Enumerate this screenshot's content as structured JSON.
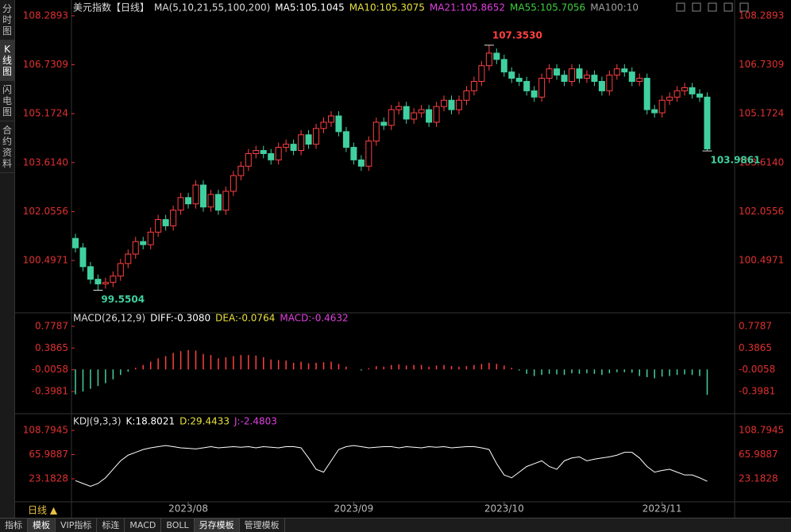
{
  "ui": {
    "sidebar": [
      "分时图",
      "K线图",
      "闪电图",
      "合约资料"
    ],
    "period": "日线 ▲",
    "tabs": [
      "指标",
      "模板",
      "VIP指标",
      "标连",
      "MACD",
      "BOLL",
      "另存模板",
      "管理模板"
    ]
  },
  "chart_data": [
    {
      "type": "candlestick",
      "title": "美元指数【日线】",
      "legend": [
        {
          "label": "MA(5,10,21,55,100,200)",
          "color": "#dddddd"
        },
        {
          "label": "MA5:105.1045",
          "color": "#ffffff"
        },
        {
          "label": "MA10:105.3075",
          "color": "#e8e040"
        },
        {
          "label": "MA21:105.8652",
          "color": "#e040e0"
        },
        {
          "label": "MA55:105.7056",
          "color": "#40d040"
        },
        {
          "label": "MA100:10",
          "color": "#a0a0a0"
        }
      ],
      "categories": [
        null,
        null,
        null,
        null,
        null,
        null,
        null,
        null,
        null,
        null,
        null,
        null,
        null,
        null,
        null,
        "2023/08",
        null,
        null,
        null,
        null,
        null,
        null,
        null,
        null,
        null,
        null,
        null,
        null,
        null,
        null,
        null,
        null,
        null,
        null,
        null,
        null,
        null,
        "2023/09",
        null,
        null,
        null,
        null,
        null,
        null,
        null,
        null,
        null,
        null,
        null,
        null,
        null,
        null,
        null,
        null,
        null,
        null,
        null,
        "2023/10",
        null,
        null,
        null,
        null,
        null,
        null,
        null,
        null,
        null,
        null,
        null,
        null,
        null,
        null,
        null,
        null,
        null,
        null,
        null,
        null,
        "2023/11",
        null,
        null,
        null,
        null,
        null,
        null
      ],
      "ohlc": [
        [
          101.2,
          101.35,
          100.75,
          100.9
        ],
        [
          100.9,
          101.05,
          100.15,
          100.3
        ],
        [
          100.3,
          100.45,
          99.75,
          99.9
        ],
        [
          99.9,
          100.05,
          99.5504,
          99.75
        ],
        [
          99.75,
          99.95,
          99.6,
          99.8
        ],
        [
          99.8,
          100.15,
          99.65,
          100.0
        ],
        [
          100.0,
          100.55,
          99.85,
          100.4
        ],
        [
          100.4,
          100.85,
          100.25,
          100.7
        ],
        [
          100.7,
          101.25,
          100.55,
          101.1
        ],
        [
          101.1,
          101.25,
          100.85,
          101.0
        ],
        [
          101.0,
          101.55,
          100.85,
          101.4
        ],
        [
          101.4,
          101.95,
          101.25,
          101.8
        ],
        [
          101.8,
          101.95,
          101.45,
          101.6
        ],
        [
          101.6,
          102.25,
          101.45,
          102.1
        ],
        [
          102.1,
          102.65,
          101.95,
          102.5
        ],
        [
          102.5,
          102.65,
          102.15,
          102.3
        ],
        [
          102.3,
          103.05,
          102.15,
          102.9
        ],
        [
          102.9,
          103.05,
          102.05,
          102.2
        ],
        [
          102.2,
          102.75,
          102.05,
          102.6
        ],
        [
          102.6,
          102.75,
          101.95,
          102.1
        ],
        [
          102.1,
          102.85,
          101.95,
          102.7
        ],
        [
          102.7,
          103.35,
          102.55,
          103.2
        ],
        [
          103.2,
          103.65,
          103.05,
          103.5
        ],
        [
          103.5,
          104.05,
          103.35,
          103.9
        ],
        [
          103.9,
          104.15,
          103.75,
          104.0
        ],
        [
          104.0,
          104.15,
          103.75,
          103.9
        ],
        [
          103.9,
          104.05,
          103.55,
          103.7
        ],
        [
          103.7,
          104.25,
          103.55,
          104.1
        ],
        [
          104.1,
          104.35,
          103.95,
          104.2
        ],
        [
          104.2,
          104.35,
          103.85,
          104.0
        ],
        [
          104.0,
          104.65,
          103.85,
          104.5
        ],
        [
          104.5,
          104.65,
          104.05,
          104.2
        ],
        [
          104.2,
          104.85,
          104.05,
          104.7
        ],
        [
          104.7,
          105.05,
          104.55,
          104.9
        ],
        [
          104.9,
          105.25,
          104.75,
          105.1
        ],
        [
          105.1,
          105.25,
          104.45,
          104.6
        ],
        [
          104.6,
          104.75,
          103.95,
          104.1
        ],
        [
          104.1,
          104.25,
          103.55,
          103.7
        ],
        [
          103.7,
          103.85,
          103.35,
          103.5
        ],
        [
          103.5,
          104.45,
          103.35,
          104.3
        ],
        [
          104.3,
          105.05,
          104.15,
          104.9
        ],
        [
          104.9,
          105.05,
          104.65,
          104.8
        ],
        [
          104.8,
          105.45,
          104.65,
          105.3
        ],
        [
          105.3,
          105.55,
          105.15,
          105.4
        ],
        [
          105.4,
          105.55,
          104.85,
          105.0
        ],
        [
          105.0,
          105.35,
          104.85,
          105.2
        ],
        [
          105.2,
          105.45,
          105.05,
          105.3
        ],
        [
          105.3,
          105.45,
          104.75,
          104.9
        ],
        [
          104.9,
          105.55,
          104.75,
          105.4
        ],
        [
          105.4,
          105.75,
          105.25,
          105.6
        ],
        [
          105.6,
          105.75,
          105.15,
          105.3
        ],
        [
          105.3,
          105.75,
          105.15,
          105.6
        ],
        [
          105.6,
          106.05,
          105.45,
          105.9
        ],
        [
          105.9,
          106.35,
          105.75,
          106.2
        ],
        [
          106.2,
          106.85,
          106.05,
          106.7
        ],
        [
          106.7,
          107.353,
          106.55,
          107.1
        ],
        [
          107.1,
          107.25,
          106.75,
          106.9
        ],
        [
          106.9,
          107.05,
          106.35,
          106.5
        ],
        [
          106.5,
          106.65,
          106.15,
          106.3
        ],
        [
          106.3,
          106.45,
          106.05,
          106.2
        ],
        [
          106.2,
          106.35,
          105.75,
          105.9
        ],
        [
          105.9,
          106.05,
          105.55,
          105.7
        ],
        [
          105.7,
          106.45,
          105.55,
          106.3
        ],
        [
          106.3,
          106.75,
          106.15,
          106.6
        ],
        [
          106.6,
          106.75,
          106.25,
          106.4
        ],
        [
          106.4,
          106.55,
          106.05,
          106.2
        ],
        [
          106.2,
          106.75,
          106.05,
          106.6
        ],
        [
          106.6,
          106.75,
          106.15,
          106.3
        ],
        [
          106.3,
          106.55,
          106.15,
          106.4
        ],
        [
          106.4,
          106.55,
          106.05,
          106.2
        ],
        [
          106.2,
          106.35,
          105.75,
          105.9
        ],
        [
          105.9,
          106.55,
          105.75,
          106.4
        ],
        [
          106.4,
          106.75,
          106.25,
          106.6
        ],
        [
          106.6,
          106.75,
          106.35,
          106.5
        ],
        [
          106.5,
          106.65,
          106.05,
          106.2
        ],
        [
          106.2,
          106.45,
          106.05,
          106.3
        ],
        [
          106.3,
          106.45,
          105.15,
          105.3
        ],
        [
          105.3,
          105.45,
          105.05,
          105.2
        ],
        [
          105.2,
          105.75,
          105.05,
          105.6
        ],
        [
          105.6,
          105.85,
          105.45,
          105.7
        ],
        [
          105.7,
          106.05,
          105.55,
          105.9
        ],
        [
          105.9,
          106.15,
          105.75,
          106.0
        ],
        [
          106.0,
          106.15,
          105.65,
          105.8
        ],
        [
          105.8,
          105.95,
          105.55,
          105.7
        ],
        [
          105.7,
          105.85,
          103.9861,
          104.05
        ]
      ],
      "up_color": "#ff4040",
      "down_color": "#40d0a0",
      "annotations": [
        {
          "label": "107.3530",
          "value": 107.353,
          "color": "#ff4040"
        },
        {
          "label": "99.5504",
          "value": 99.5504,
          "color": "#40d0a0"
        },
        {
          "label": "103.9861",
          "value": 103.9861,
          "color": "#40d0a0"
        }
      ],
      "ylim": [
        98.88,
        108.59
      ],
      "yticks": [
        {
          "value": 108.2893,
          "label": "108.2893"
        },
        {
          "value": 106.7309,
          "label": "106.7309"
        },
        {
          "value": 105.1724,
          "label": "105.1724"
        },
        {
          "value": 103.614,
          "label": "103.6140"
        },
        {
          "value": 102.0556,
          "label": "102.0556"
        },
        {
          "value": 100.4971,
          "label": "100.4971"
        }
      ],
      "grid": false
    },
    {
      "type": "bar",
      "title": "MACD(26,12,9)",
      "legend": [
        {
          "label": "DIFF:-0.3080",
          "color": "#ffffff"
        },
        {
          "label": "DEA:-0.0764",
          "color": "#e8e040"
        },
        {
          "label": "MACD:-0.4632",
          "color": "#e040e0"
        }
      ],
      "values": [
        -0.45,
        -0.4,
        -0.35,
        -0.3,
        -0.25,
        -0.18,
        -0.1,
        -0.04,
        0.03,
        0.08,
        0.14,
        0.2,
        0.24,
        0.3,
        0.33,
        0.35,
        0.34,
        0.28,
        0.26,
        0.2,
        0.22,
        0.24,
        0.26,
        0.26,
        0.25,
        0.22,
        0.18,
        0.17,
        0.16,
        0.12,
        0.14,
        0.11,
        0.12,
        0.13,
        0.14,
        0.1,
        0.05,
        0.0,
        -0.02,
        0.02,
        0.06,
        0.05,
        0.08,
        0.09,
        0.07,
        0.08,
        0.08,
        0.05,
        0.07,
        0.08,
        0.06,
        0.05,
        0.06,
        0.08,
        0.1,
        0.12,
        0.1,
        0.07,
        0.03,
        -0.02,
        -0.08,
        -0.12,
        -0.1,
        -0.08,
        -0.09,
        -0.1,
        -0.07,
        -0.08,
        -0.07,
        -0.08,
        -0.1,
        -0.07,
        -0.05,
        -0.05,
        -0.06,
        -0.12,
        -0.14,
        -0.16,
        -0.13,
        -0.12,
        -0.1,
        -0.09,
        -0.1,
        -0.12,
        -0.46
      ],
      "up_color": "#ff4040",
      "down_color": "#40d0a0",
      "ylim": [
        -0.757,
        0.936
      ],
      "yticks": [
        0.7787,
        0.3865,
        -0.0058,
        -0.3981
      ],
      "grid": false
    },
    {
      "type": "line",
      "title": "KDJ(9,3,3)",
      "legend": [
        {
          "label": "K:18.8021",
          "color": "#ffffff"
        },
        {
          "label": "D:29.4433",
          "color": "#e8e040"
        },
        {
          "label": "J:-2.4803",
          "color": "#e040e0"
        }
      ],
      "series": [
        {
          "name": "K",
          "color": "#ffffff",
          "values": [
            20,
            15,
            10,
            15,
            25,
            40,
            55,
            65,
            70,
            75,
            78,
            80,
            82,
            80,
            78,
            77,
            76,
            78,
            80,
            78,
            79,
            80,
            79,
            80,
            78,
            80,
            79,
            78,
            80,
            80,
            78,
            60,
            40,
            35,
            55,
            75,
            80,
            82,
            80,
            78,
            79,
            80,
            80,
            78,
            80,
            79,
            78,
            80,
            79,
            80,
            78,
            79,
            80,
            80,
            78,
            75,
            50,
            30,
            25,
            35,
            45,
            50,
            55,
            45,
            40,
            55,
            60,
            62,
            55,
            58,
            60,
            62,
            65,
            70,
            70,
            60,
            45,
            35,
            38,
            40,
            35,
            30,
            30,
            25,
            18.8021
          ]
        }
      ],
      "ylim": [
        -21.7,
        132.7
      ],
      "yticks": [
        108.7945,
        65.9887,
        23.1828
      ],
      "grid": false
    }
  ]
}
